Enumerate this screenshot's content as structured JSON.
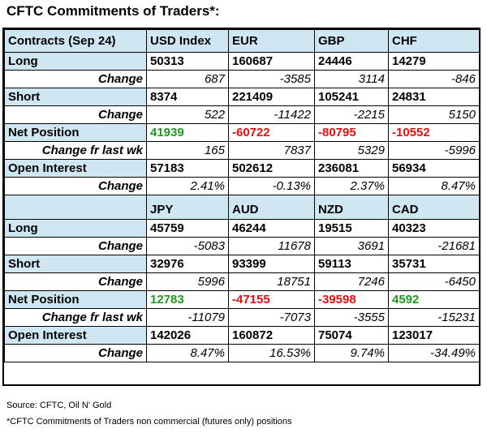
{
  "title": "CFTC Commitments of Traders*:",
  "table1": {
    "header": [
      "Contracts (Sep 24)",
      "USD Index",
      "EUR",
      "GBP",
      "CHF"
    ],
    "long": [
      "Long",
      "50313",
      "160687",
      "24446",
      "14279"
    ],
    "long_change": [
      "Change",
      "687",
      "-3585",
      "3114",
      "-846"
    ],
    "short": [
      "Short",
      "8374",
      "221409",
      "105241",
      "24831"
    ],
    "short_change": [
      "Change",
      "522",
      "-11422",
      "-2215",
      "5150"
    ],
    "net": [
      "Net Position",
      "41939",
      "-60722",
      "-80795",
      "-10552"
    ],
    "net_change": [
      "Change fr last wk",
      "165",
      "7837",
      "5329",
      "-5996"
    ],
    "oi": [
      "Open Interest",
      "57183",
      "502612",
      "236081",
      "56934"
    ],
    "oi_change": [
      "Change",
      "2.41%",
      "-0.13%",
      "2.37%",
      "8.47%"
    ]
  },
  "table2": {
    "header": [
      "",
      "JPY",
      "AUD",
      "NZD",
      "CAD"
    ],
    "long": [
      "Long",
      "45759",
      "46244",
      "19515",
      "40323"
    ],
    "long_change": [
      "Change",
      "-5083",
      "11678",
      "3691",
      "-21681"
    ],
    "short": [
      "Short",
      "32976",
      "93399",
      "59113",
      "35731"
    ],
    "short_change": [
      "Change",
      "5996",
      "18751",
      "7246",
      "-6450"
    ],
    "net": [
      "Net Position",
      "12783",
      "-47155",
      "-39598",
      "4592"
    ],
    "net_change": [
      "Change fr last wk",
      "-11079",
      "-7073",
      "-3555",
      "-15231"
    ],
    "oi": [
      "Open Interest",
      "142026",
      "160872",
      "75074",
      "123017"
    ],
    "oi_change": [
      "Change",
      "8.47%",
      "16.53%",
      "9.74%",
      "-34.49%"
    ]
  },
  "colors": {
    "header_bg": "#cfe6f3",
    "positive": "#1e9a1e",
    "negative": "#e01010"
  },
  "footer": {
    "source": "Source: CFTC, Oil N' Gold",
    "note": "*CFTC Commitments of Traders non commercial (futures only) positions"
  }
}
